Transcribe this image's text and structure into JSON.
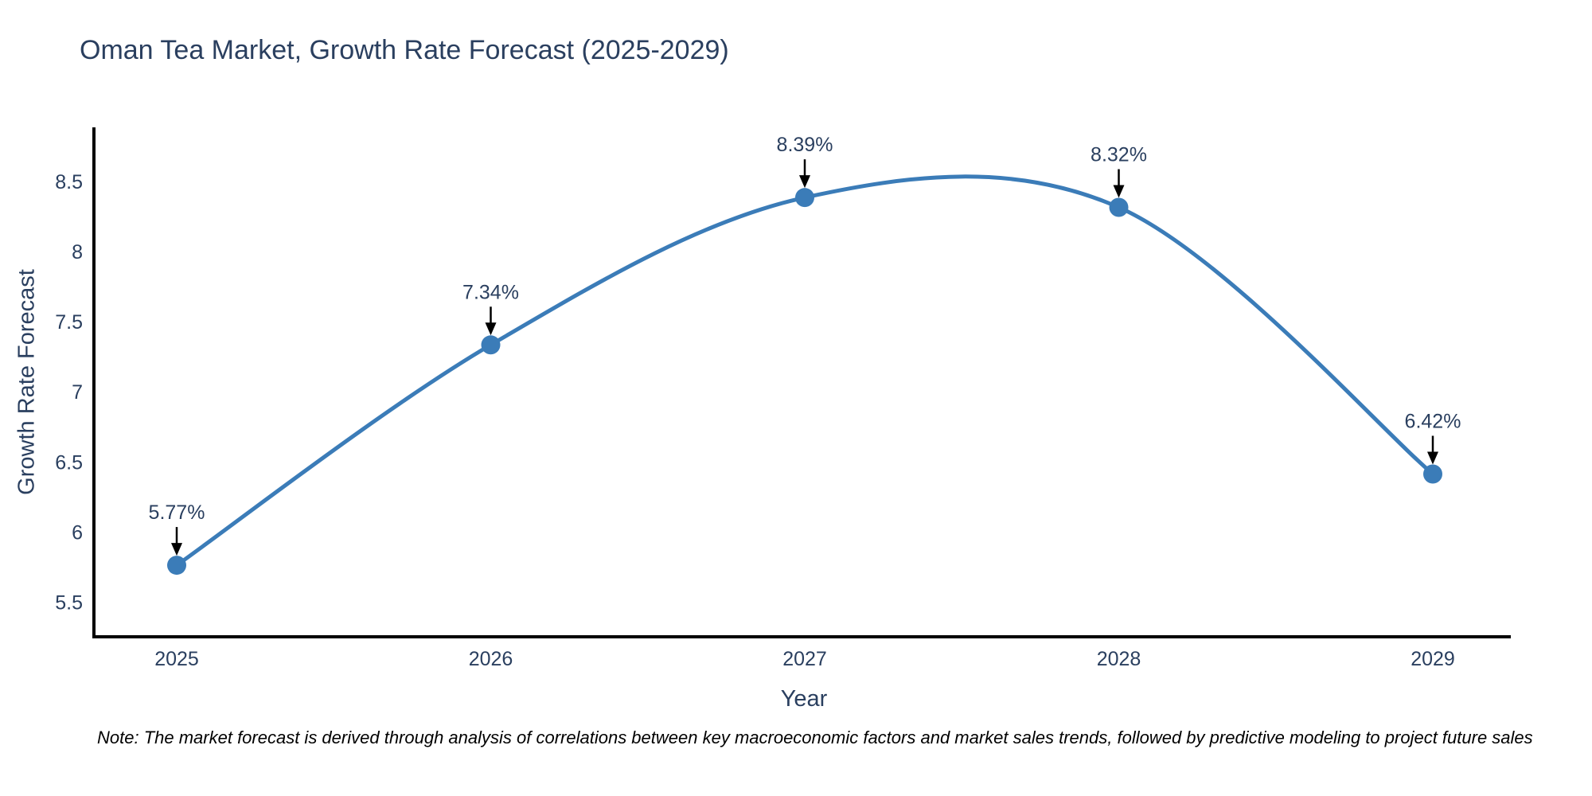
{
  "chart_data": {
    "type": "line",
    "title": "Oman Tea Market, Growth Rate Forecast (2025-2029)",
    "xlabel": "Year",
    "ylabel": "Growth Rate Forecast",
    "categories": [
      "2025",
      "2026",
      "2027",
      "2028",
      "2029"
    ],
    "values": [
      5.77,
      7.34,
      8.39,
      8.32,
      6.42
    ],
    "point_labels": [
      "5.77%",
      "7.34%",
      "8.39%",
      "8.32%",
      "6.42%"
    ],
    "y_ticks": [
      5.5,
      6,
      6.5,
      7,
      7.5,
      8,
      8.5
    ],
    "ylim": [
      5.26,
      8.89
    ],
    "line_shape": "spline",
    "grid": false,
    "legend_position": "none",
    "colors": {
      "line": "#3b7cb8",
      "marker": "#3b7cb8",
      "axis": "#000000",
      "text": "#2a3f5f",
      "annotation_arrow": "#000000"
    }
  },
  "note": {
    "text": "Note: The market forecast is derived through analysis of correlations between key macroeconomic factors and market sales trends, followed by predictive modeling to project future sales"
  }
}
